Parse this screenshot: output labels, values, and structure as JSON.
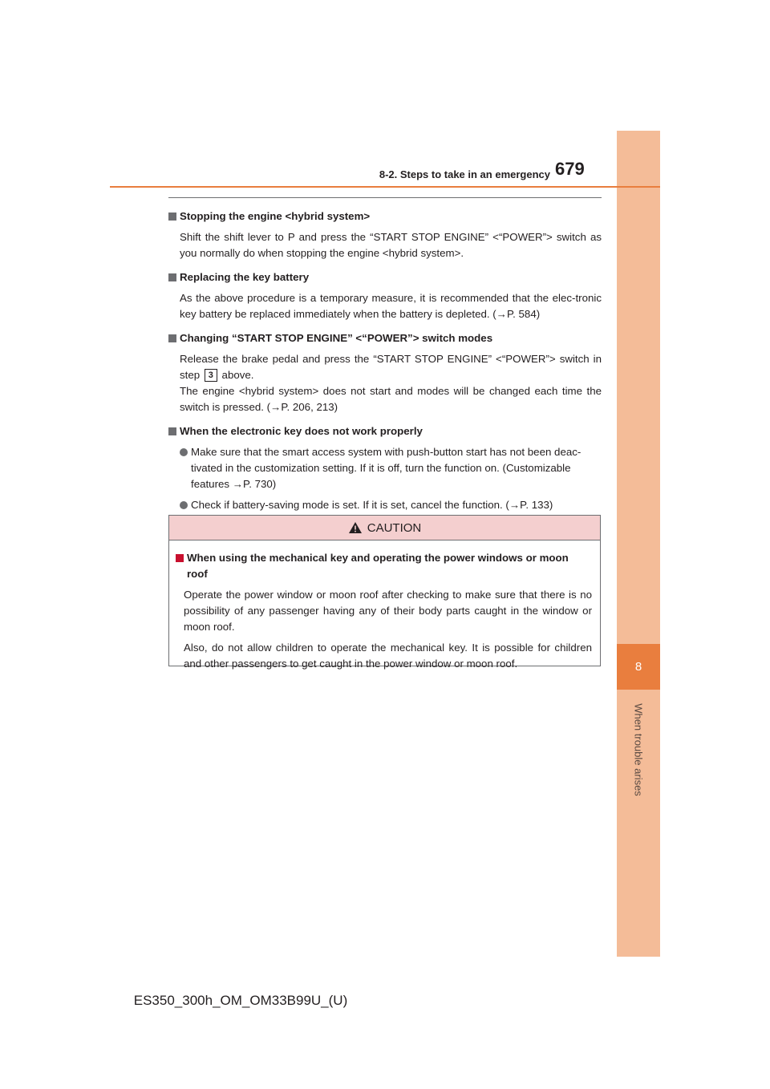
{
  "header": {
    "section": "8-2. Steps to take in an emergency",
    "page_number": "679"
  },
  "side_tab": {
    "chapter_number": "8",
    "chapter_label": "When trouble arises"
  },
  "sections": [
    {
      "heading": "Stopping the engine <hybrid system>",
      "body": "Shift the shift lever to P and press the “START STOP ENGINE” <“POWER”> switch as you normally do when stopping the engine <hybrid system>."
    },
    {
      "heading": "Replacing the key battery",
      "body": "As the above procedure is a temporary measure, it is recommended that the elec-tronic key battery be replaced immediately when the battery is depleted. (→P. 584)"
    },
    {
      "heading": "Changing “START STOP ENGINE” <“POWER”> switch modes",
      "body_part1": "Release the brake pedal and press the “START STOP ENGINE” <“POWER”> switch in step",
      "step_number": "3",
      "body_part2": "above.",
      "body_part3": "The engine <hybrid system> does not start and modes will be changed each time the switch is pressed. (→P. 206, 213)"
    },
    {
      "heading": "When the electronic key does not work properly",
      "bullets": [
        "Make sure that the smart access system with push-button start has not been deac-tivated in the customization setting. If it is off, turn the function on. (Customizable features →P. 730)",
        "Check if battery-saving mode is set. If it is set, cancel the function. (→P. 133)"
      ]
    }
  ],
  "caution": {
    "title": "CAUTION",
    "heading": "When using the mechanical key and operating the power windows or moon roof",
    "paragraphs": [
      "Operate the power window or moon roof after checking to make sure that there is no possibility of any passenger having any of their body parts caught in the window or moon roof.",
      "Also, do not allow children to operate the mechanical key. It is possible for children and other passengers to get caught in the power window or moon roof."
    ]
  },
  "footer": {
    "model_code": "ES350_300h_OM_OM33B99U_(U)"
  },
  "colors": {
    "accent_orange": "#e97e3e",
    "side_bar": "#f4bc98",
    "caution_header": "#f4cfcf",
    "caution_square": "#c8102e"
  }
}
